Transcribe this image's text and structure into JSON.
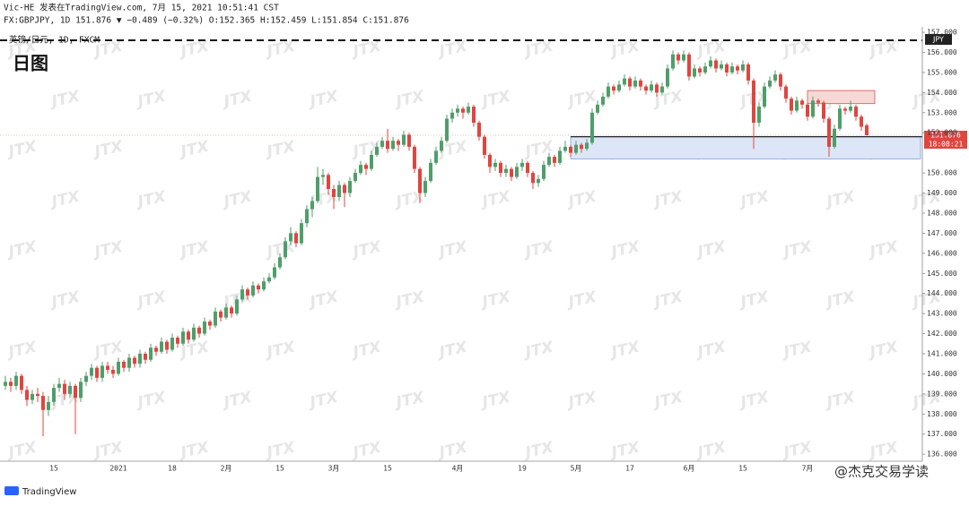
{
  "chart_data": {
    "type": "candlestick",
    "publisher_line": "Vic-HE 发表在TradingView.com, 7月 15, 2021 10:51:41 CST",
    "info_line": "FX:GBPJPY, 1D 151.876 ▼ −0.489 (−0.32%) O:152.365 H:152.459 L:151.854 C:151.876",
    "instrument_line": "英镑/日元, 1D, FXCM",
    "title": "日图",
    "currency": "JPY",
    "last_price_label": "151.876",
    "countdown": "18:08:21",
    "brand": "TradingView",
    "signature": "@杰克交易学读",
    "watermark": "JTX",
    "up_color": "#4f9e6a",
    "down_color": "#e0453f",
    "categories": [
      null,
      null,
      null,
      null,
      null,
      null,
      null,
      null,
      null,
      "15",
      null,
      null,
      null,
      null,
      null,
      null,
      null,
      null,
      null,
      null,
      null,
      "2021",
      null,
      null,
      null,
      null,
      null,
      null,
      null,
      null,
      null,
      "18",
      null,
      null,
      null,
      null,
      null,
      null,
      null,
      null,
      null,
      "2月",
      null,
      null,
      null,
      null,
      null,
      null,
      null,
      null,
      null,
      "15",
      null,
      null,
      null,
      null,
      null,
      null,
      null,
      null,
      null,
      "3月",
      null,
      null,
      null,
      null,
      null,
      null,
      null,
      null,
      null,
      "15",
      null,
      null,
      null,
      null,
      null,
      null,
      null,
      null,
      null,
      null,
      null,
      null,
      "4月",
      null,
      null,
      null,
      null,
      null,
      null,
      null,
      null,
      null,
      null,
      null,
      "19",
      null,
      null,
      null,
      null,
      null,
      null,
      null,
      null,
      null,
      "5月",
      null,
      null,
      null,
      null,
      null,
      null,
      null,
      null,
      null,
      "17",
      null,
      null,
      null,
      null,
      null,
      null,
      null,
      null,
      null,
      null,
      "6月",
      null,
      null,
      null,
      null,
      null,
      null,
      null,
      null,
      null,
      "15",
      null,
      null,
      null,
      null,
      null,
      null,
      null,
      null,
      null,
      null,
      null,
      "7月",
      null,
      null,
      null,
      null,
      null,
      null,
      null,
      null,
      null,
      null,
      null
    ],
    "ohlc": [
      [
        139.4,
        139.9,
        139.2,
        139.6
      ],
      [
        139.6,
        139.8,
        139.1,
        139.4
      ],
      [
        139.4,
        140.1,
        139.2,
        139.9
      ],
      [
        139.9,
        140.0,
        139.0,
        139.2
      ],
      [
        139.2,
        139.4,
        138.4,
        138.7
      ],
      [
        138.7,
        139.2,
        138.5,
        139.0
      ],
      [
        139.0,
        139.3,
        138.6,
        138.9
      ],
      [
        138.9,
        139.1,
        136.9,
        138.2
      ],
      [
        138.2,
        138.9,
        137.9,
        138.6
      ],
      [
        138.6,
        139.5,
        138.4,
        139.3
      ],
      [
        139.3,
        139.8,
        139.1,
        139.5
      ],
      [
        139.5,
        139.7,
        138.7,
        139.0
      ],
      [
        139.0,
        139.6,
        138.8,
        139.4
      ],
      [
        139.4,
        139.5,
        137.0,
        138.8
      ],
      [
        138.8,
        139.8,
        138.6,
        139.6
      ],
      [
        139.6,
        140.1,
        139.4,
        139.9
      ],
      [
        139.9,
        140.5,
        139.7,
        140.3
      ],
      [
        140.3,
        140.4,
        139.6,
        139.8
      ],
      [
        139.8,
        140.6,
        139.6,
        140.4
      ],
      [
        140.4,
        140.6,
        140.0,
        140.2
      ],
      [
        140.2,
        140.4,
        139.8,
        140.0
      ],
      [
        140.0,
        140.8,
        139.9,
        140.6
      ],
      [
        140.6,
        140.7,
        140.1,
        140.3
      ],
      [
        140.3,
        141.0,
        140.1,
        140.8
      ],
      [
        140.8,
        140.9,
        140.3,
        140.5
      ],
      [
        140.5,
        141.2,
        140.3,
        141.0
      ],
      [
        141.0,
        141.1,
        140.5,
        140.7
      ],
      [
        140.7,
        141.5,
        140.6,
        141.3
      ],
      [
        141.3,
        141.4,
        140.9,
        141.1
      ],
      [
        141.1,
        141.8,
        141.0,
        141.6
      ],
      [
        141.6,
        141.7,
        141.0,
        141.2
      ],
      [
        141.2,
        142.0,
        141.1,
        141.8
      ],
      [
        141.8,
        141.9,
        141.3,
        141.5
      ],
      [
        141.5,
        142.3,
        141.4,
        142.1
      ],
      [
        142.1,
        142.2,
        141.5,
        141.7
      ],
      [
        141.7,
        142.5,
        141.6,
        142.3
      ],
      [
        142.3,
        142.4,
        141.8,
        142.0
      ],
      [
        142.0,
        142.8,
        141.9,
        142.6
      ],
      [
        142.6,
        142.7,
        142.2,
        142.4
      ],
      [
        142.4,
        143.3,
        142.3,
        143.1
      ],
      [
        143.1,
        143.2,
        142.6,
        142.8
      ],
      [
        142.8,
        143.5,
        142.7,
        143.3
      ],
      [
        143.3,
        143.4,
        142.8,
        143.0
      ],
      [
        143.0,
        143.9,
        142.9,
        143.7
      ],
      [
        143.7,
        144.4,
        143.6,
        144.2
      ],
      [
        144.2,
        144.3,
        143.7,
        143.9
      ],
      [
        143.9,
        144.6,
        143.8,
        144.4
      ],
      [
        144.4,
        144.5,
        144.0,
        144.2
      ],
      [
        144.2,
        144.8,
        144.1,
        144.6
      ],
      [
        144.6,
        145.0,
        144.5,
        144.8
      ],
      [
        144.8,
        145.5,
        144.7,
        145.3
      ],
      [
        145.3,
        146.0,
        145.2,
        145.8
      ],
      [
        145.8,
        146.8,
        145.7,
        146.6
      ],
      [
        146.6,
        147.3,
        146.4,
        147.0
      ],
      [
        147.0,
        147.1,
        146.3,
        146.5
      ],
      [
        146.5,
        147.7,
        146.4,
        147.5
      ],
      [
        147.5,
        148.4,
        147.3,
        148.2
      ],
      [
        148.2,
        148.8,
        147.8,
        148.6
      ],
      [
        148.6,
        150.3,
        148.5,
        149.8
      ],
      [
        149.8,
        150.2,
        149.4,
        149.9
      ],
      [
        149.9,
        150.0,
        148.9,
        149.2
      ],
      [
        149.2,
        149.4,
        148.2,
        148.8
      ],
      [
        148.8,
        149.6,
        148.6,
        149.4
      ],
      [
        149.4,
        149.5,
        148.3,
        149.0
      ],
      [
        149.0,
        149.8,
        148.8,
        149.6
      ],
      [
        149.6,
        150.2,
        149.5,
        150.0
      ],
      [
        150.0,
        150.6,
        149.9,
        150.4
      ],
      [
        150.4,
        150.5,
        149.9,
        150.2
      ],
      [
        150.2,
        151.1,
        150.1,
        150.9
      ],
      [
        150.9,
        151.5,
        150.8,
        151.3
      ],
      [
        151.3,
        151.8,
        151.2,
        151.6
      ],
      [
        151.6,
        152.2,
        151.0,
        151.2
      ],
      [
        151.2,
        151.8,
        151.1,
        151.6
      ],
      [
        151.6,
        151.7,
        151.1,
        151.4
      ],
      [
        151.4,
        152.1,
        151.3,
        151.9
      ],
      [
        151.9,
        152.0,
        151.1,
        151.3
      ],
      [
        151.3,
        151.4,
        150.0,
        150.2
      ],
      [
        150.2,
        150.3,
        148.5,
        149.0
      ],
      [
        149.0,
        149.8,
        148.8,
        149.6
      ],
      [
        149.6,
        150.7,
        149.5,
        150.5
      ],
      [
        150.5,
        151.3,
        150.4,
        151.1
      ],
      [
        151.1,
        151.8,
        151.0,
        151.6
      ],
      [
        151.6,
        152.9,
        151.5,
        152.7
      ],
      [
        152.7,
        153.2,
        152.5,
        153.0
      ],
      [
        153.0,
        153.4,
        152.8,
        153.2
      ],
      [
        153.2,
        153.3,
        152.7,
        153.0
      ],
      [
        153.0,
        153.5,
        152.9,
        153.3
      ],
      [
        153.3,
        153.4,
        152.3,
        152.5
      ],
      [
        152.5,
        152.6,
        151.6,
        151.8
      ],
      [
        151.8,
        151.9,
        150.7,
        150.9
      ],
      [
        150.9,
        151.0,
        150.0,
        150.3
      ],
      [
        150.3,
        150.7,
        150.1,
        150.5
      ],
      [
        150.5,
        150.6,
        149.8,
        150.0
      ],
      [
        150.0,
        150.4,
        149.8,
        150.2
      ],
      [
        150.2,
        150.3,
        149.6,
        149.8
      ],
      [
        149.8,
        150.5,
        149.7,
        150.3
      ],
      [
        150.3,
        150.7,
        150.1,
        150.5
      ],
      [
        150.5,
        150.6,
        149.8,
        150.0
      ],
      [
        150.0,
        150.1,
        149.2,
        149.5
      ],
      [
        149.5,
        149.9,
        149.3,
        149.7
      ],
      [
        149.7,
        150.6,
        149.6,
        150.4
      ],
      [
        150.4,
        151.0,
        150.3,
        150.8
      ],
      [
        150.8,
        150.9,
        150.3,
        150.5
      ],
      [
        150.5,
        151.3,
        150.4,
        151.1
      ],
      [
        151.1,
        151.6,
        151.0,
        151.3
      ],
      [
        151.3,
        151.4,
        150.8,
        151.0
      ],
      [
        151.0,
        151.6,
        150.9,
        151.4
      ],
      [
        151.4,
        151.5,
        151.0,
        151.2
      ],
      [
        151.2,
        151.7,
        151.1,
        151.5
      ],
      [
        151.5,
        153.2,
        151.4,
        153.0
      ],
      [
        153.0,
        153.6,
        152.9,
        153.4
      ],
      [
        153.4,
        154.0,
        153.3,
        153.8
      ],
      [
        153.8,
        154.5,
        153.7,
        154.3
      ],
      [
        154.3,
        154.4,
        153.9,
        154.1
      ],
      [
        154.1,
        154.6,
        154.0,
        154.4
      ],
      [
        154.4,
        154.9,
        154.3,
        154.7
      ],
      [
        154.7,
        154.8,
        154.1,
        154.3
      ],
      [
        154.3,
        154.8,
        154.2,
        154.6
      ],
      [
        154.6,
        154.7,
        154.1,
        154.3
      ],
      [
        154.3,
        154.4,
        153.9,
        154.1
      ],
      [
        154.1,
        154.6,
        154.0,
        154.4
      ],
      [
        154.4,
        154.5,
        153.8,
        154.0
      ],
      [
        154.0,
        154.5,
        153.9,
        154.3
      ],
      [
        154.3,
        155.4,
        154.2,
        155.2
      ],
      [
        155.2,
        156.1,
        155.1,
        155.9
      ],
      [
        155.9,
        156.0,
        155.4,
        155.6
      ],
      [
        155.6,
        156.1,
        155.5,
        155.9
      ],
      [
        155.9,
        156.0,
        154.6,
        154.8
      ],
      [
        154.8,
        155.4,
        154.7,
        155.2
      ],
      [
        155.2,
        155.3,
        154.8,
        155.0
      ],
      [
        155.0,
        155.5,
        154.9,
        155.3
      ],
      [
        155.3,
        155.8,
        155.2,
        155.6
      ],
      [
        155.6,
        155.7,
        155.0,
        155.2
      ],
      [
        155.2,
        155.6,
        155.1,
        155.4
      ],
      [
        155.4,
        155.5,
        154.8,
        155.0
      ],
      [
        155.0,
        155.5,
        154.9,
        155.3
      ],
      [
        155.3,
        155.4,
        154.9,
        155.1
      ],
      [
        155.1,
        155.6,
        155.0,
        155.4
      ],
      [
        155.4,
        155.5,
        154.4,
        154.6
      ],
      [
        154.6,
        154.7,
        151.2,
        152.5
      ],
      [
        152.5,
        153.5,
        152.3,
        153.3
      ],
      [
        153.3,
        154.5,
        153.2,
        154.3
      ],
      [
        154.3,
        154.8,
        154.2,
        154.6
      ],
      [
        154.6,
        155.1,
        154.5,
        154.9
      ],
      [
        154.9,
        155.0,
        154.1,
        154.3
      ],
      [
        154.3,
        154.4,
        153.5,
        153.7
      ],
      [
        153.7,
        153.8,
        152.9,
        153.1
      ],
      [
        153.1,
        153.8,
        153.0,
        153.6
      ],
      [
        153.6,
        153.7,
        153.2,
        153.4
      ],
      [
        153.4,
        153.5,
        152.6,
        152.8
      ],
      [
        152.8,
        153.8,
        152.7,
        153.6
      ],
      [
        153.6,
        153.7,
        153.3,
        153.5
      ],
      [
        153.5,
        153.6,
        152.5,
        152.7
      ],
      [
        152.7,
        152.8,
        150.8,
        151.3
      ],
      [
        151.3,
        152.4,
        151.2,
        152.2
      ],
      [
        152.2,
        153.4,
        152.1,
        153.2
      ],
      [
        153.2,
        153.3,
        152.9,
        153.1
      ],
      [
        153.1,
        153.6,
        153.0,
        153.3
      ],
      [
        153.3,
        153.4,
        152.6,
        152.8
      ],
      [
        152.8,
        152.9,
        152.1,
        152.3
      ],
      [
        152.365,
        152.459,
        151.854,
        151.876
      ]
    ],
    "ylim": [
      135.65,
      157.27
    ],
    "yticks": [
      {
        "value": 136,
        "label": "136.000"
      },
      {
        "value": 137,
        "label": "137.000"
      },
      {
        "value": 138,
        "label": "138.000"
      },
      {
        "value": 139,
        "label": "139.000"
      },
      {
        "value": 140,
        "label": "140.000"
      },
      {
        "value": 141,
        "label": "141.000"
      },
      {
        "value": 142,
        "label": "142.000"
      },
      {
        "value": 143,
        "label": "143.000"
      },
      {
        "value": 144,
        "label": "144.000"
      },
      {
        "value": 145,
        "label": "145.000"
      },
      {
        "value": 146,
        "label": "146.000"
      },
      {
        "value": 147,
        "label": "147.000"
      },
      {
        "value": 148,
        "label": "148.000"
      },
      {
        "value": 149,
        "label": "149.000"
      },
      {
        "value": 150,
        "label": "150.000"
      },
      {
        "value": 152,
        "label": "152.000"
      },
      {
        "value": 153,
        "label": "153.000"
      },
      {
        "value": 154,
        "label": "154.000"
      },
      {
        "value": 155,
        "label": "155.000"
      },
      {
        "value": 156,
        "label": "156.000"
      },
      {
        "value": 157,
        "label": "157.000"
      }
    ],
    "dashed_level": 156.6,
    "support_line": 151.8,
    "zones": [
      {
        "top": 154.1,
        "bottom": 153.45,
        "from": 149,
        "to": 161.5,
        "color": "#f6d9d6",
        "stroke": "#d9534f"
      },
      {
        "top": 151.8,
        "bottom": 150.7,
        "from": 105,
        "to": 170,
        "color": "#dce6f7",
        "stroke": "#7fa0d8"
      }
    ]
  }
}
